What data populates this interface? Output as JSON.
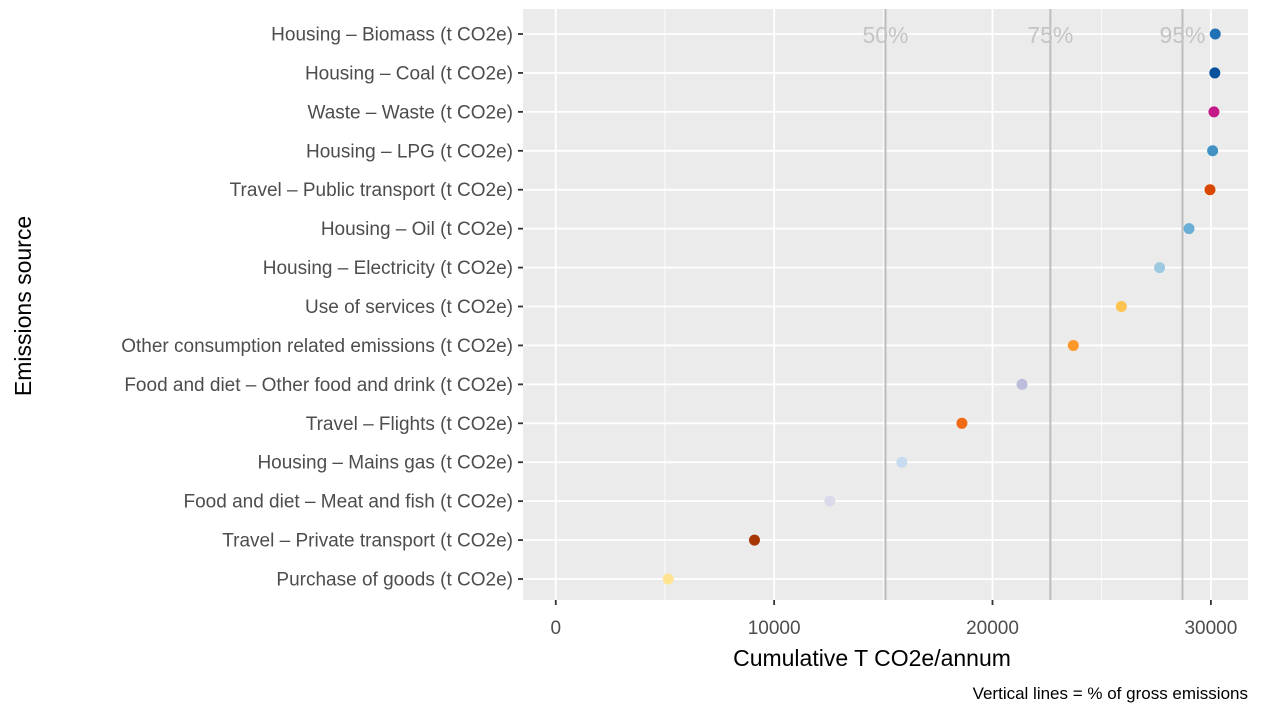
{
  "chart_data": {
    "type": "scatter",
    "title": "",
    "xlabel": "Cumulative T CO2e/annum",
    "ylabel": "Emissions source",
    "caption": "Vertical lines = % of gross emissions",
    "xlim": [
      -1500,
      31700
    ],
    "x_ticks": [
      0,
      10000,
      20000,
      30000
    ],
    "x_tick_labels": [
      "0",
      "10000",
      "20000",
      "30000"
    ],
    "grid": true,
    "legend": "none",
    "categories": [
      "Housing – Biomass (t CO2e)",
      "Housing – Coal (t CO2e)",
      "Waste – Waste (t CO2e)",
      "Housing – LPG (t CO2e)",
      "Travel – Public transport (t CO2e)",
      "Housing – Oil (t CO2e)",
      "Housing – Electricity (t CO2e)",
      "Use of services (t CO2e)",
      "Other consumption related emissions (t CO2e)",
      "Food and diet – Other food and drink (t CO2e)",
      "Travel – Flights (t CO2e)",
      "Housing – Mains gas (t CO2e)",
      "Food and diet – Meat and fish (t CO2e)",
      "Travel – Private transport (t CO2e)",
      "Purchase of goods (t CO2e)"
    ],
    "values": [
      30200,
      30180,
      30140,
      30080,
      29960,
      29000,
      27650,
      25900,
      23700,
      21350,
      18600,
      15850,
      12550,
      9100,
      5150
    ],
    "colors": [
      "#2171b5",
      "#08519c",
      "#c51b8a",
      "#4292c6",
      "#d94801",
      "#6baed6",
      "#9ecae1",
      "#fec44f",
      "#fe9929",
      "#bcbddc",
      "#f16913",
      "#c6dbef",
      "#dadaeb",
      "#a63603",
      "#fee391"
    ],
    "reference_lines": [
      {
        "label": "50%",
        "x": 15100
      },
      {
        "label": "75%",
        "x": 22650
      },
      {
        "label": "95%",
        "x": 28700
      }
    ]
  }
}
